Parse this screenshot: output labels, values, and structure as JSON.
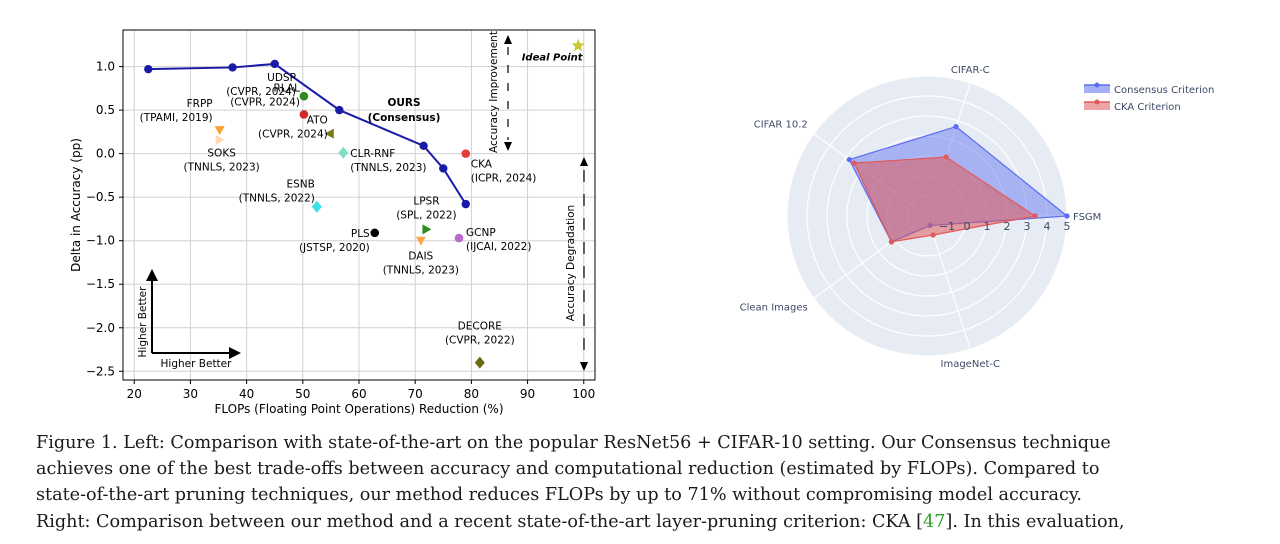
{
  "chart_data": [
    {
      "type": "scatter",
      "xlabel": "FLOPs (Floating Point Operations) Reduction (%)",
      "ylabel": "Delta in Accuracy (pp)",
      "xlim": [
        18,
        102
      ],
      "ylim": [
        -2.6,
        1.42
      ],
      "x_ticks": [
        20,
        30,
        40,
        50,
        60,
        70,
        80,
        90,
        100
      ],
      "y_ticks": [
        1.0,
        0.5,
        0.0,
        -0.5,
        -1.0,
        -1.5,
        -2.0,
        -2.5
      ],
      "y_tick_labels": [
        "1.0",
        "0.5",
        "0.0",
        "−0.5",
        "−1.0",
        "−1.5",
        "−2.0",
        "−2.5"
      ],
      "grid": true,
      "series": [
        {
          "name": "OURS (Consensus)",
          "color": "#1a1aa8",
          "x": [
            22.5,
            37.5,
            45,
            56.5,
            71.5,
            75,
            79
          ],
          "y": [
            0.97,
            0.99,
            1.03,
            0.5,
            0.09,
            -0.17,
            -0.58
          ]
        }
      ],
      "points": [
        {
          "x": 50.2,
          "y": 0.66,
          "color": "#2e8b1e",
          "marker": "circle",
          "label": [
            "UDSP",
            "(CVPR, 2024)"
          ],
          "label_anchor": "end"
        },
        {
          "x": 50.2,
          "y": 0.45,
          "color": "#d62728",
          "marker": "circle",
          "label": [
            "RLAL",
            "(CVPR, 2024)"
          ],
          "label_anchor": "end"
        },
        {
          "x": 35.2,
          "y": 0.27,
          "color": "#ff9f2e",
          "marker": "triangle-down",
          "label": [
            "FRPP",
            "(TPAMI, 2019)"
          ],
          "label_anchor": "end"
        },
        {
          "x": 35.2,
          "y": 0.16,
          "color": "#ffd9b3",
          "marker": "triangle-right",
          "label": [
            "SOKS",
            "(TNNLS, 2023)"
          ],
          "label_anchor": "middle"
        },
        {
          "x": 54.8,
          "y": 0.23,
          "color": "#7a7a14",
          "marker": "triangle-left",
          "label": [
            "ATO",
            "(CVPR, 2024)"
          ],
          "label_anchor": "end"
        },
        {
          "x": 57.2,
          "y": 0.01,
          "color": "#7fe0c8",
          "marker": "diamond",
          "label": [
            "CLR-RNF",
            "(TNNLS, 2023)"
          ],
          "label_anchor": "start"
        },
        {
          "x": 79.0,
          "y": 0.0,
          "color": "#e33a3a",
          "marker": "circle",
          "label": [
            "CKA",
            "(ICPR, 2024)"
          ],
          "label_anchor": "start"
        },
        {
          "x": 52.5,
          "y": -0.61,
          "color": "#3ee0e0",
          "marker": "diamond",
          "label": [
            "ESNB",
            "(TNNLS, 2022)"
          ],
          "label_anchor": "end"
        },
        {
          "x": 62.8,
          "y": -0.91,
          "color": "#000000",
          "marker": "circle",
          "label": [
            "PLS",
            "(JSTSP, 2020)"
          ],
          "label_anchor": "end"
        },
        {
          "x": 72.0,
          "y": -0.87,
          "color": "#2e8b1e",
          "marker": "triangle-right",
          "label": [
            "LPSR",
            "(SPL, 2022)"
          ],
          "label_anchor": "middle"
        },
        {
          "x": 71.0,
          "y": -1.0,
          "color": "#ffa64d",
          "marker": "triangle-down",
          "label": [
            "DAIS",
            "(TNNLS, 2023)"
          ],
          "label_anchor": "middle"
        },
        {
          "x": 77.8,
          "y": -0.97,
          "color": "#b86cc9",
          "marker": "circle",
          "label": [
            "GCNP",
            "(IJCAI, 2022)"
          ],
          "label_anchor": "start"
        },
        {
          "x": 81.5,
          "y": -2.4,
          "color": "#6b6b14",
          "marker": "diamond",
          "label": [
            "DECORE",
            "(CVPR, 2022)"
          ],
          "label_anchor": "middle"
        },
        {
          "x": 99.0,
          "y": 1.24,
          "color": "#c8c833",
          "marker": "star",
          "label": [
            "Ideal Point"
          ],
          "label_anchor": "middle"
        }
      ],
      "annotations": {
        "ours_label": [
          "OURS",
          "(Consensus)"
        ],
        "accuracy_improvement": "Accuracy Improvement",
        "accuracy_degradation": "Accuracy Degradation",
        "higher_better_x": "Higher Better",
        "higher_better_y": "Higher Better"
      }
    },
    {
      "type": "radar",
      "axes": [
        "FSGM",
        "CIFAR-C",
        "CIFAR 10.2",
        "Clean Images",
        "ImageNet-C"
      ],
      "radial_range": [
        -2,
        5
      ],
      "radial_ticks": [
        -1,
        0,
        1,
        2,
        3,
        4,
        5
      ],
      "radial_tick_labels": [
        "−1",
        "0",
        "1",
        "2",
        "3",
        "4",
        "5"
      ],
      "series": [
        {
          "name": "Consensus Criterion",
          "color": "#5b6cf0",
          "values": [
            5.0,
            2.7,
            2.8,
            0.2,
            -1.5
          ]
        },
        {
          "name": "CKA Criterion",
          "color": "#e05a5a",
          "values": [
            3.4,
            1.1,
            2.5,
            0.2,
            -1.0
          ]
        }
      ]
    }
  ],
  "caption": {
    "lines": [
      "Figure 1. Left: Comparison with state-of-the-art on the popular ResNet56 + CIFAR-10 setting. Our Consensus technique",
      "achieves one of the best trade-offs between accuracy and computational reduction (estimated by FLOPs).  Compared to",
      "state-of-the-art pruning techniques, our method reduces FLOPs by up to 71% without compromising model accuracy.",
      "Right: Comparison between our method and a recent state-of-the-art layer-pruning criterion: CKA ",
      "47",
      ". In this evaluation,"
    ]
  }
}
